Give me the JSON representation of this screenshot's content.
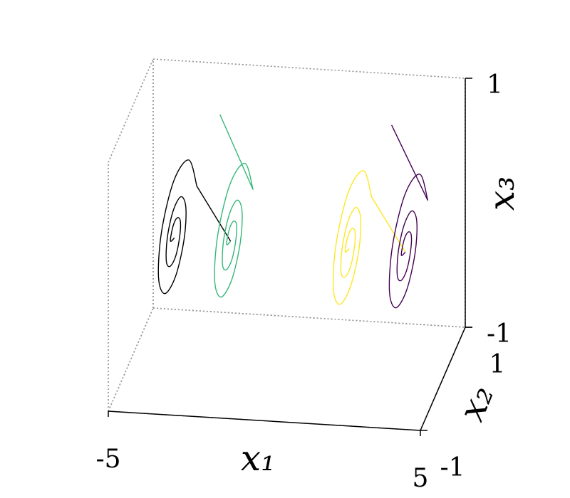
{
  "chart_data": {
    "type": "line3d",
    "xlabel": "x₁",
    "ylabel": "x₂",
    "zlabel": "x₃",
    "xlim": [
      -5,
      5
    ],
    "xticks": [
      -5,
      5
    ],
    "ylim": [
      -1,
      1
    ],
    "yticks": [
      -1,
      1
    ],
    "zlim": [
      -1,
      1
    ],
    "zticks": [
      -1,
      1
    ],
    "grid": true,
    "series": [
      {
        "color": "#000000",
        "x": [
          -1.8,
          -3.6,
          -3.6,
          -3.6,
          -3.6,
          -3.6,
          -3.6,
          -3.6,
          -3.6,
          -3.6,
          -3.6,
          -3.6,
          -3.6,
          -3.6,
          -3.6,
          -3.6,
          -3.6,
          -3.6,
          -3.6,
          -3.6,
          -3.6,
          -3.6
        ],
        "y": [
          0,
          1.0,
          0.64,
          -0.02,
          -0.57,
          -0.71,
          -0.43,
          0.05,
          0.43,
          0.51,
          0.29,
          -0.06,
          -0.32,
          -0.36,
          -0.19,
          0.06,
          0.24,
          0.26,
          0.12,
          -0.06,
          -0.18,
          0
        ],
        "z": [
          0,
          0,
          0.36,
          0.47,
          0.29,
          -0.02,
          -0.27,
          -0.33,
          -0.19,
          0.03,
          0.21,
          0.24,
          0.13,
          -0.04,
          -0.15,
          -0.17,
          -0.08,
          0.03,
          0.11,
          0.12,
          0.05,
          0
        ]
      },
      {
        "color": "#35b779",
        "x": [
          -2.5,
          -1.8,
          -1.8,
          -1.8,
          -1.8,
          -1.8,
          -1.8,
          -1.8,
          -1.8,
          -1.8,
          -1.8,
          -1.8,
          -1.8,
          -1.8,
          -1.8,
          -1.8,
          -1.8,
          -1.8,
          -1.8,
          -1.8,
          -1.8,
          -1.8
        ],
        "y": [
          0.5,
          1.0,
          0.64,
          -0.02,
          -0.57,
          -0.71,
          -0.43,
          0.05,
          0.43,
          0.51,
          0.29,
          -0.06,
          -0.32,
          -0.36,
          -0.19,
          0.06,
          0.24,
          0.26,
          0.12,
          -0.06,
          -0.18,
          0
        ],
        "z": [
          0.8,
          0,
          0.36,
          0.47,
          0.29,
          -0.02,
          -0.27,
          -0.33,
          -0.19,
          0.03,
          0.21,
          0.24,
          0.13,
          -0.04,
          -0.15,
          -0.17,
          -0.08,
          0.03,
          0.11,
          0.12,
          0.05,
          0
        ]
      },
      {
        "color": "#fde725",
        "x": [
          3.8,
          2.0,
          2.0,
          2.0,
          2.0,
          2.0,
          2.0,
          2.0,
          2.0,
          2.0,
          2.0,
          2.0,
          2.0,
          2.0,
          2.0,
          2.0,
          2.0,
          2.0,
          2.0,
          2.0,
          2.0,
          2.0
        ],
        "y": [
          0,
          1.0,
          0.64,
          -0.02,
          -0.57,
          -0.71,
          -0.43,
          0.05,
          0.43,
          0.51,
          0.29,
          -0.06,
          -0.32,
          -0.36,
          -0.19,
          0.06,
          0.24,
          0.26,
          0.12,
          -0.06,
          -0.18,
          0
        ],
        "z": [
          0,
          0,
          0.36,
          0.47,
          0.29,
          -0.02,
          -0.27,
          -0.33,
          -0.19,
          0.03,
          0.21,
          0.24,
          0.13,
          -0.04,
          -0.15,
          -0.17,
          -0.08,
          0.03,
          0.11,
          0.12,
          0.05,
          0
        ]
      },
      {
        "color": "#440154",
        "x": [
          3.0,
          3.8,
          3.8,
          3.8,
          3.8,
          3.8,
          3.8,
          3.8,
          3.8,
          3.8,
          3.8,
          3.8,
          3.8,
          3.8,
          3.8,
          3.8,
          3.8,
          3.8,
          3.8,
          3.8,
          3.8,
          3.8
        ],
        "y": [
          0.5,
          1.0,
          0.64,
          -0.02,
          -0.57,
          -0.71,
          -0.43,
          0.05,
          0.43,
          0.51,
          0.29,
          -0.06,
          -0.32,
          -0.36,
          -0.19,
          0.06,
          0.24,
          0.26,
          0.12,
          -0.06,
          -0.18,
          0
        ],
        "z": [
          0.8,
          0,
          0.36,
          0.47,
          0.29,
          -0.02,
          -0.27,
          -0.33,
          -0.19,
          0.03,
          0.21,
          0.24,
          0.13,
          -0.04,
          -0.15,
          -0.17,
          -0.08,
          0.03,
          0.11,
          0.12,
          0.05,
          0
        ]
      }
    ]
  }
}
